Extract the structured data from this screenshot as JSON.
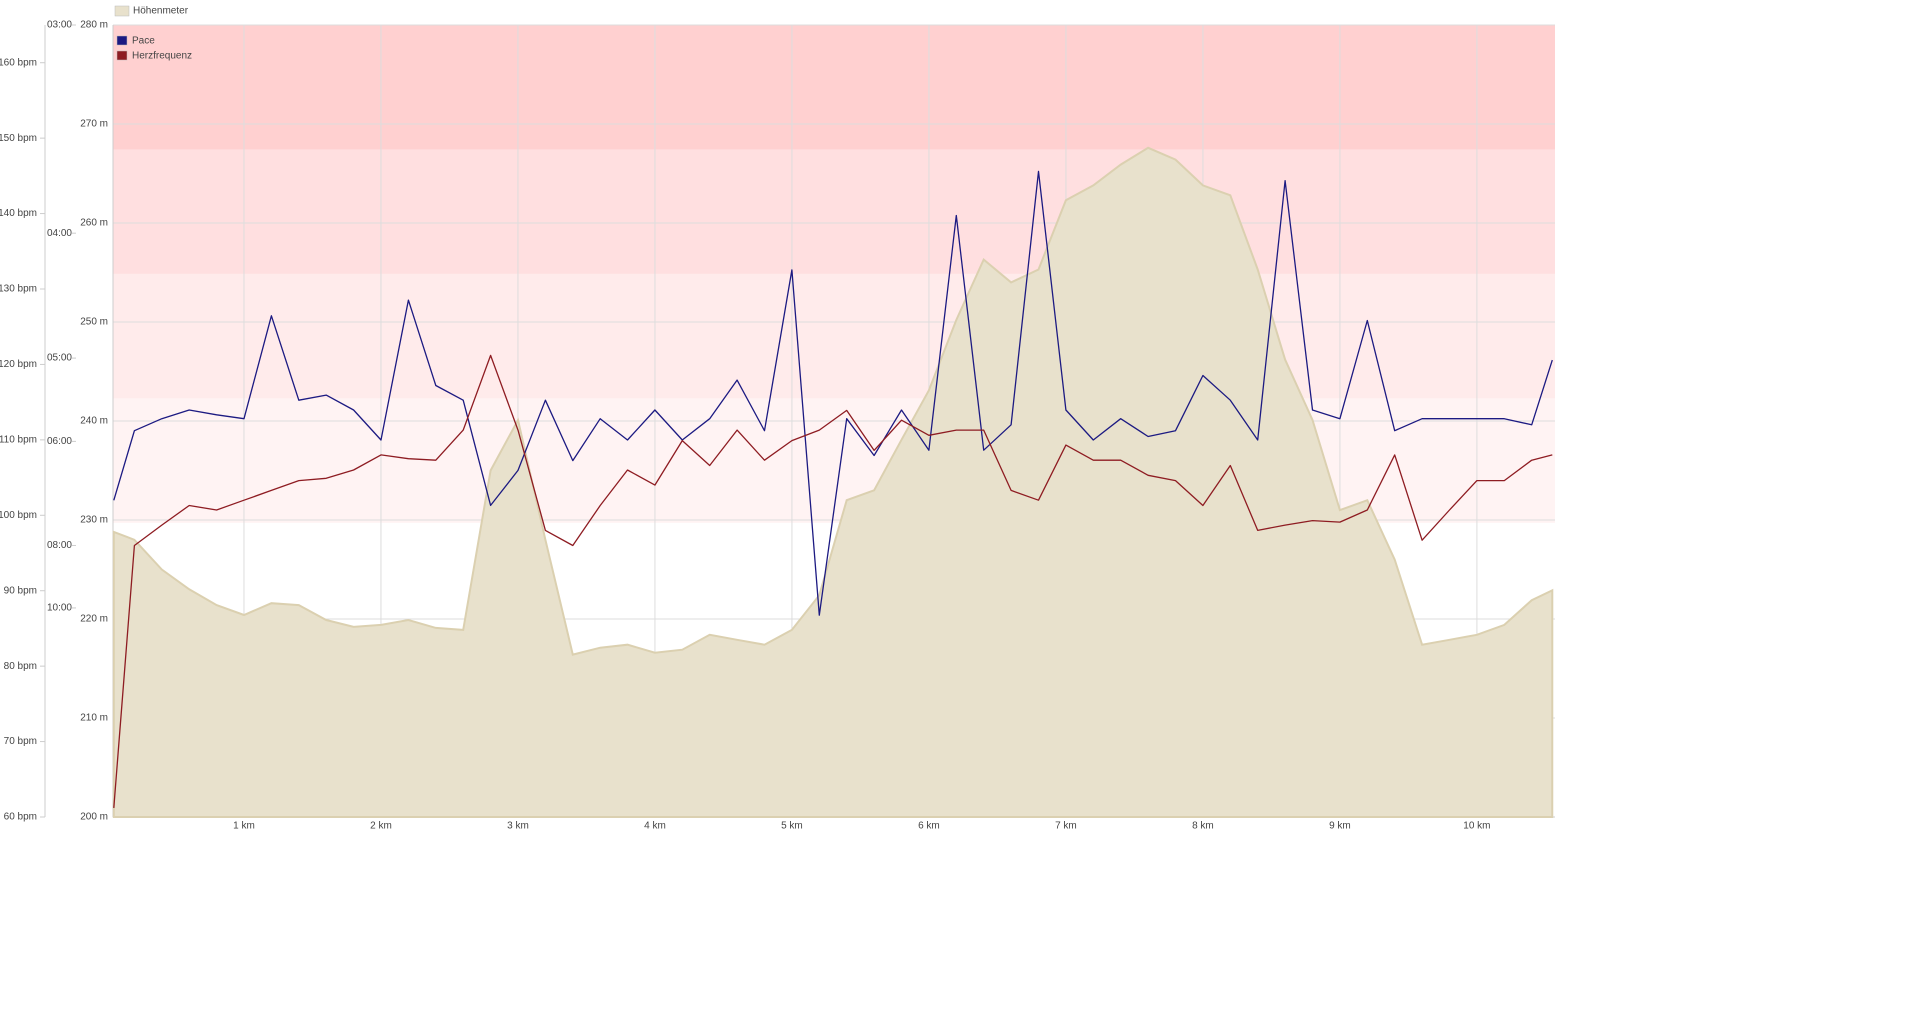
{
  "chart_data": {
    "type": "line",
    "x": [
      0.05,
      0.2,
      0.4,
      0.6,
      0.8,
      1.0,
      1.2,
      1.4,
      1.6,
      1.8,
      2.0,
      2.2,
      2.4,
      2.6,
      2.8,
      3.0,
      3.2,
      3.4,
      3.6,
      3.8,
      4.0,
      4.2,
      4.4,
      4.6,
      4.8,
      5.0,
      5.2,
      5.4,
      5.6,
      5.8,
      6.0,
      6.2,
      6.4,
      6.6,
      6.8,
      7.0,
      7.2,
      7.4,
      7.6,
      7.8,
      8.0,
      8.2,
      8.4,
      8.6,
      8.8,
      9.0,
      9.2,
      9.4,
      9.6,
      9.8,
      10.0,
      10.2,
      10.4,
      10.55
    ],
    "xlim": [
      0.044,
      10.57
    ],
    "xticks": [
      {
        "value": 1,
        "label": "1 km"
      },
      {
        "value": 2,
        "label": "2 km"
      },
      {
        "value": 3,
        "label": "3 km"
      },
      {
        "value": 4,
        "label": "4 km"
      },
      {
        "value": 5,
        "label": "5 km"
      },
      {
        "value": 6,
        "label": "6 km"
      },
      {
        "value": 7,
        "label": "7 km"
      },
      {
        "value": 8,
        "label": "8 km"
      },
      {
        "value": 9,
        "label": "9 km"
      },
      {
        "value": 10,
        "label": "10 km"
      }
    ],
    "ylim": [
      200,
      280
    ],
    "yticks": [
      {
        "value": 200,
        "label": "200 m"
      },
      {
        "value": 210,
        "label": "210 m"
      },
      {
        "value": 220,
        "label": "220 m"
      },
      {
        "value": 230,
        "label": "230 m"
      },
      {
        "value": 240,
        "label": "240 m"
      },
      {
        "value": 250,
        "label": "250 m"
      },
      {
        "value": 260,
        "label": "260 m"
      },
      {
        "value": 270,
        "label": "270 m"
      },
      {
        "value": 280,
        "label": "280 m"
      }
    ],
    "y2lim": [
      60,
      165
    ],
    "y2ticks": [
      {
        "value": 60,
        "label": "60 bpm"
      },
      {
        "value": 70,
        "label": "70 bpm"
      },
      {
        "value": 80,
        "label": "80 bpm"
      },
      {
        "value": 90,
        "label": "90 bpm"
      },
      {
        "value": 100,
        "label": "100 bpm"
      },
      {
        "value": 110,
        "label": "110 bpm"
      },
      {
        "value": 120,
        "label": "120 bpm"
      },
      {
        "value": 130,
        "label": "130 bpm"
      },
      {
        "value": 140,
        "label": "140 bpm"
      },
      {
        "value": 150,
        "label": "150 bpm"
      },
      {
        "value": 160,
        "label": "160 bpm"
      }
    ],
    "y3lim": [
      61.3,
      3
    ],
    "y3scale": "reciprocal",
    "y3ticks": [
      {
        "value": 3,
        "label": "03:00"
      },
      {
        "value": 4,
        "label": "04:00"
      },
      {
        "value": 5,
        "label": "05:00"
      },
      {
        "value": 6,
        "label": "06:00"
      },
      {
        "value": 8,
        "label": "08:00"
      },
      {
        "value": 10,
        "label": "10:00"
      }
    ],
    "grid": true,
    "zones": [
      {
        "from": 99,
        "to": 115.5,
        "color": "#fff3f3"
      },
      {
        "from": 115.5,
        "to": 132,
        "color": "#ffebeb"
      },
      {
        "from": 132,
        "to": 148.5,
        "color": "#ffdfe0"
      },
      {
        "from": 148.5,
        "to": 165,
        "color": "#ffd0d0"
      }
    ],
    "series": [
      {
        "name": "Höhenmeter",
        "type": "area",
        "color": "#e8e1cc",
        "values": [
          228.8,
          228,
          225,
          223,
          221.4,
          220.4,
          221.6,
          221.4,
          219.9,
          219.2,
          219.4,
          219.9,
          219.1,
          218.9,
          235,
          240.1,
          228,
          216.4,
          217.1,
          217.4,
          216.6,
          216.9,
          218.4,
          217.9,
          217.4,
          218.9,
          222.4,
          232,
          233,
          238.1,
          243.1,
          250.2,
          256.3,
          254,
          255.3,
          262.3,
          263.8,
          265.9,
          267.6,
          266.4,
          263.8,
          262.8,
          255.3,
          246.2,
          240.1,
          231,
          232,
          226,
          217.4,
          217.9,
          218.4,
          219.4,
          221.9,
          222.9
        ]
      },
      {
        "name": "Pace",
        "axis": "y3",
        "color": "#1c1a82",
        "values": [
          6.99,
          5.85,
          5.69,
          5.58,
          5.64,
          5.69,
          4.61,
          5.46,
          5.4,
          5.58,
          5.98,
          4.48,
          5.29,
          5.46,
          7.09,
          6.45,
          5.46,
          6.29,
          5.69,
          5.98,
          5.58,
          5.98,
          5.69,
          5.23,
          5.85,
          4.25,
          10.3,
          5.69,
          6.21,
          5.58,
          6.13,
          3.89,
          6.13,
          5.77,
          3.64,
          5.58,
          5.98,
          5.69,
          5.93,
          5.85,
          5.18,
          5.46,
          5.98,
          3.69,
          5.58,
          5.69,
          4.65,
          5.85,
          5.69,
          5.69,
          5.69,
          5.69,
          5.77,
          5.02
        ]
      },
      {
        "name": "Herzfrequenz",
        "axis": "y2",
        "color": "#8e1c22",
        "values": [
          61.2,
          96,
          98.7,
          101.3,
          100.7,
          102,
          103.3,
          104.6,
          104.9,
          106,
          108,
          107.5,
          107.3,
          111.3,
          121.2,
          111.3,
          98,
          96,
          101.3,
          106,
          104,
          109.9,
          106.6,
          111.3,
          107.3,
          109.9,
          111.3,
          113.9,
          108.6,
          112.6,
          110.6,
          111.3,
          111.3,
          103.3,
          102,
          109.3,
          107.3,
          107.3,
          105.3,
          104.6,
          101.3,
          106.6,
          98,
          98.7,
          99.3,
          99.1,
          100.7,
          108,
          96.7,
          100.7,
          104.6,
          104.6,
          107.3,
          108
        ]
      }
    ]
  }
}
